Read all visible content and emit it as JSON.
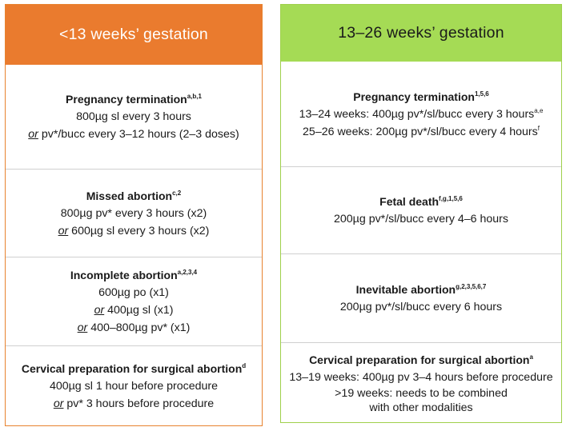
{
  "left": {
    "header": "<13 weeks’ gestation",
    "sections": [
      {
        "title": "Pregnancy termination",
        "sup": "a,b,1",
        "lines": [
          {
            "or": "",
            "text": "800µg sl every 3 hours"
          },
          {
            "or": "or",
            "text": " pv*/bucc every 3–12 hours (2–3 doses)"
          }
        ]
      },
      {
        "title": "Missed abortion",
        "sup": "c,2",
        "lines": [
          {
            "or": "",
            "text": "800µg pv* every 3 hours (x2)"
          },
          {
            "or": "or",
            "text": " 600µg sl every 3 hours (x2)"
          }
        ]
      },
      {
        "title": "Incomplete abortion",
        "sup": "a,2,3,4",
        "lines": [
          {
            "or": "",
            "text": "600µg po (x1)"
          },
          {
            "or": "or",
            "text": " 400µg sl (x1)"
          },
          {
            "or": "or",
            "text": " 400–800µg pv* (x1)"
          }
        ]
      },
      {
        "title": "Cervical preparation for surgical abortion",
        "sup": "d",
        "lines": [
          {
            "or": "",
            "text": "400µg sl 1 hour before procedure"
          },
          {
            "or": "or",
            "text": " pv* 3 hours before procedure"
          }
        ]
      }
    ]
  },
  "right": {
    "header": "13–26 weeks’ gestation",
    "sections": [
      {
        "title": "Pregnancy termination",
        "sup": "1,5,6",
        "lines": [
          {
            "text": "13–24 weeks: 400µg pv*/sl/bucc every 3 hours",
            "sup": "a,e"
          },
          {
            "text": "25–26 weeks: 200µg pv*/sl/bucc every 4 hours",
            "sup": "f"
          }
        ]
      },
      {
        "title": "Fetal death",
        "sup": "f,g,1,5,6",
        "lines": [
          {
            "text": "200µg pv*/sl/bucc every 4–6 hours",
            "sup": ""
          }
        ]
      },
      {
        "title": "Inevitable abortion",
        "sup": "g,2,3,5,6,7",
        "lines": [
          {
            "text": "200µg pv*/sl/bucc every 6 hours",
            "sup": ""
          }
        ]
      },
      {
        "title": "Cervical preparation for surgical abortion",
        "sup": "a",
        "lines": [
          {
            "text": "13–19 weeks: 400µg pv 3–4 hours before procedure",
            "sup": ""
          },
          {
            "text": ">19 weeks: needs to be combined",
            "sup": ""
          },
          {
            "text": "with other modalities",
            "sup": ""
          }
        ]
      }
    ]
  },
  "colors": {
    "left_header": "#ea7b2e",
    "right_header": "#a5db55"
  }
}
